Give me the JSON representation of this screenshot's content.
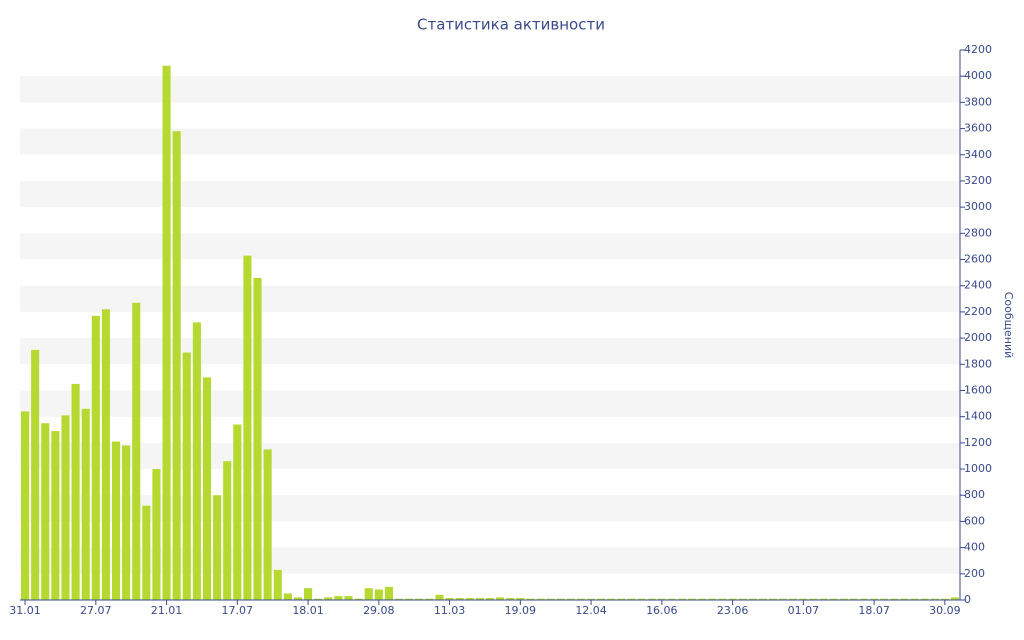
{
  "chart_data": {
    "type": "bar",
    "title": "Статистика активности",
    "y_label": "Сообщений",
    "categories": [
      "31.01",
      null,
      null,
      null,
      null,
      null,
      null,
      "27.07",
      null,
      null,
      null,
      null,
      null,
      null,
      "21.01",
      null,
      null,
      null,
      null,
      null,
      null,
      "17.07",
      null,
      null,
      null,
      null,
      null,
      null,
      "18.01",
      null,
      null,
      null,
      null,
      null,
      null,
      "29.08",
      null,
      null,
      null,
      null,
      null,
      null,
      "11.03",
      null,
      null,
      null,
      null,
      null,
      null,
      "19.09",
      null,
      null,
      null,
      null,
      null,
      null,
      "12.04",
      null,
      null,
      null,
      null,
      null,
      null,
      "16.06",
      null,
      null,
      null,
      null,
      null,
      null,
      "23.06",
      null,
      null,
      null,
      null,
      null,
      null,
      "01.07",
      null,
      null,
      null,
      null,
      null,
      null,
      "18.07",
      null,
      null,
      null,
      null,
      null,
      null,
      "30.09",
      null
    ],
    "values": [
      1440,
      1910,
      1350,
      1290,
      1410,
      1650,
      1460,
      2170,
      2220,
      1210,
      1180,
      2270,
      720,
      1000,
      4080,
      3580,
      1890,
      2120,
      1700,
      800,
      1060,
      1340,
      2630,
      2460,
      1150,
      230,
      50,
      20,
      90,
      10,
      20,
      30,
      30,
      10,
      90,
      80,
      100,
      10,
      10,
      10,
      10,
      40,
      15,
      15,
      15,
      15,
      15,
      20,
      15,
      15,
      10,
      10,
      10,
      10,
      10,
      10,
      10,
      10,
      10,
      10,
      10,
      10,
      10,
      10,
      10,
      10,
      10,
      10,
      10,
      10,
      10,
      10,
      10,
      10,
      10,
      10,
      10,
      10,
      10,
      10,
      10,
      10,
      10,
      10,
      10,
      10,
      10,
      10,
      10,
      10,
      10,
      10,
      20
    ],
    "color": "#b5d930",
    "ylim": [
      0,
      4200
    ],
    "yticks": [
      0,
      200,
      400,
      600,
      800,
      1000,
      1200,
      1400,
      1600,
      1800,
      2000,
      2200,
      2400,
      2600,
      2800,
      3000,
      3200,
      3400,
      3600,
      3800,
      4000,
      4200
    ],
    "grid": "bands",
    "y_axis_side": "right"
  }
}
